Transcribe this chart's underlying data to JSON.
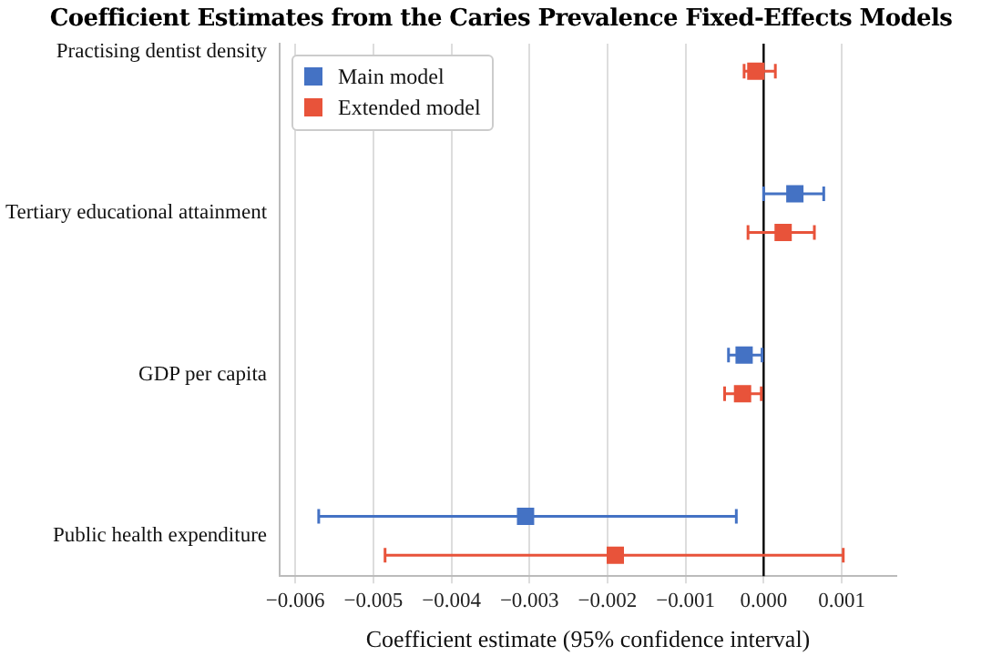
{
  "chart_data": {
    "type": "scatter",
    "orientation": "horizontal",
    "title": "Coefficient Estimates from the Caries Prevalence Fixed-Effects Models",
    "xlabel": "Coefficient estimate (95% confidence interval)",
    "categories": [
      "Practising dentist density",
      "Tertiary educational attainment",
      "GDP per capita",
      "Public health expenditure"
    ],
    "series": [
      {
        "name": "Main model",
        "color": "#4472c4",
        "values": [
          null,
          0.0004,
          -0.00025,
          -0.00305
        ],
        "errors": [
          null,
          [
            0.0,
            0.00077
          ],
          [
            -0.00045,
            -2e-05
          ],
          [
            -0.0057,
            -0.00035
          ]
        ]
      },
      {
        "name": "Extended model",
        "color": "#e8533a",
        "values": [
          -0.0001,
          0.00025,
          -0.00027,
          -0.0019
        ],
        "errors": [
          [
            -0.00025,
            0.00015
          ],
          [
            -0.0002,
            0.00065
          ],
          [
            -0.0005,
            -3e-05
          ],
          [
            -0.00485,
            0.00102
          ]
        ]
      }
    ],
    "xlim": [
      -0.0062,
      0.0017
    ],
    "xticks": [
      {
        "value": -0.006,
        "label": "−0.006"
      },
      {
        "value": -0.005,
        "label": "−0.005"
      },
      {
        "value": -0.004,
        "label": "−0.004"
      },
      {
        "value": -0.003,
        "label": "−0.003"
      },
      {
        "value": -0.002,
        "label": "−0.002"
      },
      {
        "value": -0.001,
        "label": "−0.001"
      },
      {
        "value": 0,
        "label": "0.000"
      },
      {
        "value": 0.001,
        "label": "0.001"
      }
    ],
    "ref_lines": [
      {
        "axis": "x",
        "value": 0,
        "color": "#000000"
      }
    ],
    "grid": "x",
    "legend": "top left",
    "marker": "square"
  }
}
